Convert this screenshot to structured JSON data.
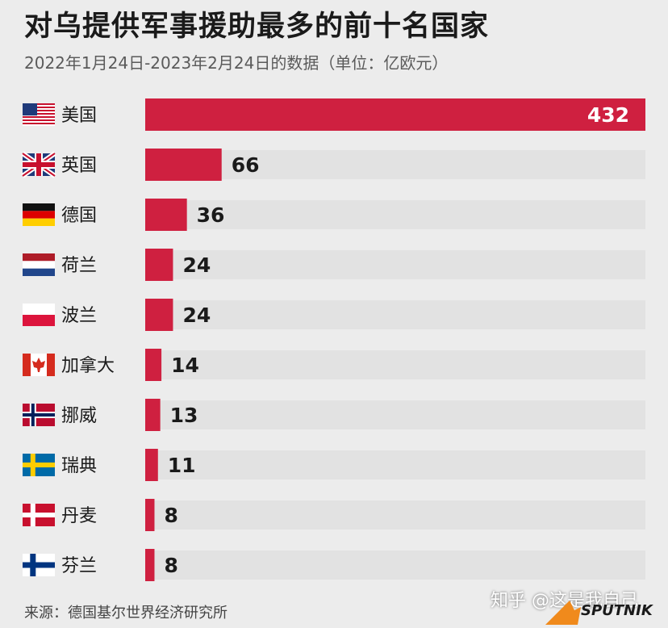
{
  "title": "对乌提供军事援助最多的前十名国家",
  "subtitle": "2022年1月24日-2023年2月24日的数据（单位：亿欧元）",
  "source": "来源：德国基尔世界经济研究所",
  "watermark": "知乎 @这是我自己",
  "logo": {
    "text": "SPUTNIK"
  },
  "colors": {
    "bar": "#cf2040",
    "track": "#e2e2e2",
    "background": "#ececec"
  },
  "chart_data": {
    "type": "bar",
    "orientation": "horizontal",
    "title": "对乌提供军事援助最多的前十名国家",
    "subtitle": "2022年1月24日-2023年2月24日的数据（单位：亿欧元）",
    "unit": "亿欧元",
    "categories": [
      "美国",
      "英国",
      "德国",
      "荷兰",
      "波兰",
      "加拿大",
      "挪威",
      "瑞典",
      "丹麦",
      "芬兰"
    ],
    "flags": [
      "usa-flag-icon",
      "uk-flag-icon",
      "germany-flag-icon",
      "netherlands-flag-icon",
      "poland-flag-icon",
      "canada-flag-icon",
      "norway-flag-icon",
      "sweden-flag-icon",
      "denmark-flag-icon",
      "finland-flag-icon"
    ],
    "values": [
      432,
      66,
      36,
      24,
      24,
      14,
      13,
      11,
      8,
      8
    ],
    "xlim": [
      0,
      432
    ],
    "grid": false,
    "legend": "none"
  }
}
